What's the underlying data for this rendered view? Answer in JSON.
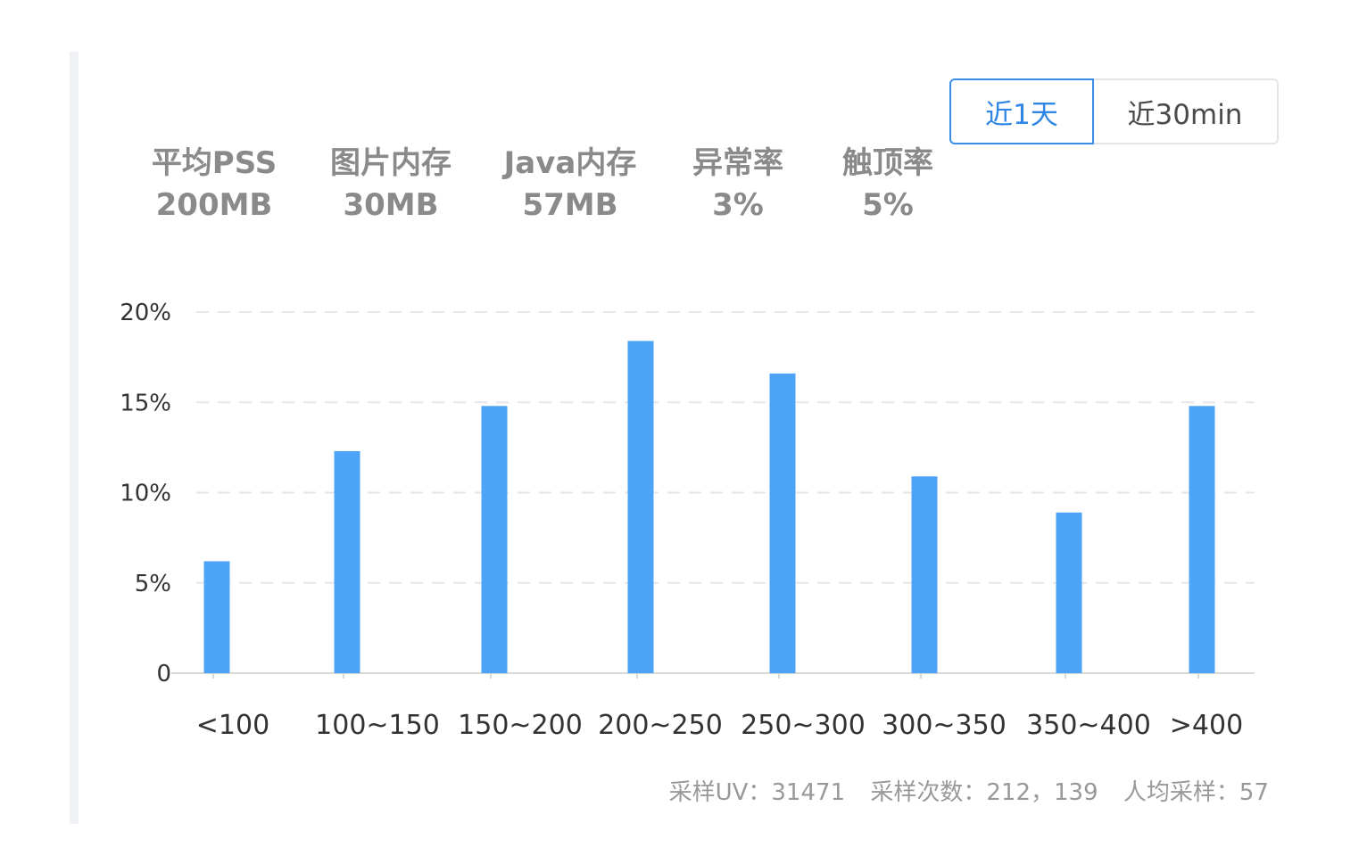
{
  "range_toggle": {
    "options": [
      "近1天",
      "近30min"
    ],
    "selected": "近1天"
  },
  "stats": [
    {
      "label": "平均PSS",
      "value": "200MB"
    },
    {
      "label": "图片内存",
      "value": "30MB"
    },
    {
      "label": "Java内存",
      "value": "57MB"
    },
    {
      "label": "异常率",
      "value": "3%"
    },
    {
      "label": "触顶率",
      "value": "5%"
    }
  ],
  "chart_data": {
    "type": "bar",
    "title": "",
    "xlabel": "",
    "ylabel": "",
    "categories": [
      "<100",
      "100~150",
      "150~200",
      "200~250",
      "250~300",
      "300~350",
      "350~400",
      ">400"
    ],
    "values": [
      6.2,
      12.3,
      14.8,
      18.4,
      16.6,
      10.9,
      8.9,
      14.8
    ],
    "ylim": [
      0,
      20
    ],
    "yticks": [
      "0",
      "5%",
      "10%",
      "15%",
      "20%"
    ],
    "grid": true,
    "bar_color": "#4da3f7"
  },
  "footer": {
    "sample_uv": "采样UV：31471",
    "sample_count": "采样次数：212，139",
    "per_person": "人均采样：57"
  }
}
